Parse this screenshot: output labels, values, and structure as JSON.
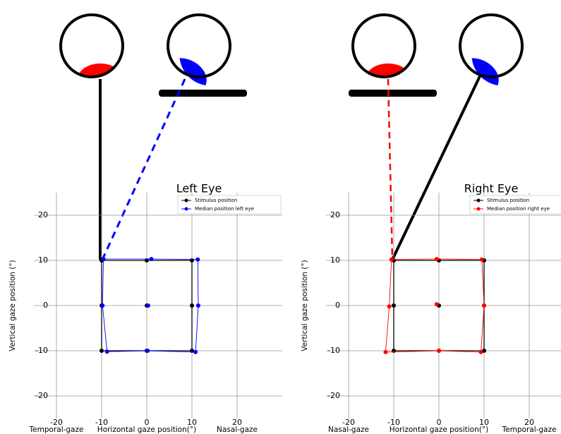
{
  "chart_data": [
    {
      "type": "line",
      "title": "Left Eye",
      "xlabel": "Horizontal gaze position(°)",
      "ylabel": "Vertical gaze position (°)",
      "annotations": [
        "Temporal-gaze",
        "Nasal-gaze"
      ],
      "xlim": [
        -25,
        30
      ],
      "ylim": [
        -25,
        25
      ],
      "xticks": [
        -20,
        -10,
        0,
        10,
        20
      ],
      "yticks": [
        -20,
        -10,
        0,
        10,
        20
      ],
      "grid": true,
      "legend": "upper right",
      "series": [
        {
          "name": "Stimulus position",
          "color": "#000000",
          "x": [
            -10,
            0,
            10,
            10,
            10,
            0,
            -10,
            -10,
            -10,
            null,
            0
          ],
          "y": [
            10,
            10,
            10,
            0,
            -10,
            -10,
            -10,
            0,
            10,
            null,
            0
          ]
        },
        {
          "name": "Median position left eye",
          "color": "#0000ff",
          "x": [
            -9.6,
            1,
            11.3,
            11.4,
            10.8,
            0.2,
            -8.8,
            -9.8,
            -9.6,
            null,
            0.3
          ],
          "y": [
            10.3,
            10.3,
            10.2,
            0,
            -10.3,
            -10,
            -10.2,
            0,
            10.3,
            null,
            0
          ]
        }
      ]
    },
    {
      "type": "line",
      "title": "Right Eye",
      "xlabel": "Horizontal gaze position(°)",
      "ylabel": "Vertical gaze position (°)",
      "annotations": [
        "Nasal-gaze",
        "Temporal-gaze"
      ],
      "xlim": [
        -25,
        30
      ],
      "ylim": [
        -25,
        25
      ],
      "xticks": [
        -20,
        -10,
        0,
        10,
        20
      ],
      "yticks": [
        -20,
        -10,
        0,
        10,
        20
      ],
      "grid": true,
      "legend": "upper right",
      "series": [
        {
          "name": "Stimulus position",
          "color": "#000000",
          "x": [
            -10,
            0,
            10,
            10,
            10,
            0,
            -10,
            -10,
            -10,
            null,
            0
          ],
          "y": [
            10,
            10,
            10,
            0,
            -10,
            -10,
            -10,
            0,
            10,
            null,
            0
          ]
        },
        {
          "name": "Median position right eye",
          "color": "#ff0000",
          "x": [
            -10.5,
            -0.5,
            9.5,
            10,
            9.3,
            0,
            -11.8,
            -11,
            -10.5,
            null,
            -0.5
          ],
          "y": [
            10.2,
            10.3,
            10.2,
            0,
            -10.3,
            -10,
            -10.3,
            -0.2,
            10.2,
            null,
            0.3
          ]
        }
      ]
    }
  ]
}
